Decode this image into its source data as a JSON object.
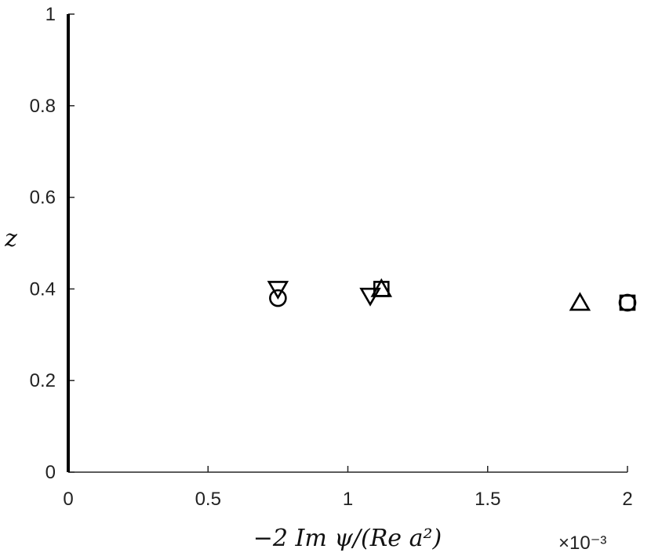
{
  "chart_data": {
    "type": "line",
    "title": "",
    "xlabel": "−2 Im ψ/(Re a²)",
    "ylabel": "z",
    "x_multiplier": "×10⁻³",
    "xlim": [
      0,
      2.0
    ],
    "ylim": [
      0,
      1
    ],
    "xticks": [
      0,
      0.5,
      1,
      1.5,
      2
    ],
    "yticks": [
      0,
      0.2,
      0.4,
      0.6,
      0.8,
      1
    ],
    "xtick_labels": [
      "0",
      "0.5",
      "1",
      "1.5",
      "2"
    ],
    "ytick_labels": [
      "0",
      "0.2",
      "0.4",
      "0.6",
      "0.8",
      "1"
    ],
    "grid": false,
    "legend": "none",
    "series": [
      {
        "style": "solid",
        "marker": "circle",
        "peak": {
          "x": 2.0,
          "z": 0.37
        }
      },
      {
        "style": "solid",
        "marker": "square",
        "peak": {
          "x": 2.0,
          "z": 0.37
        }
      },
      {
        "style": "solid",
        "marker": "triangle-up",
        "peak": {
          "x": 1.83,
          "z": 0.37
        }
      },
      {
        "style": "solid",
        "marker": "triangle-down",
        "peak": {
          "x": 1.08,
          "z": 0.385
        }
      },
      {
        "style": "dashed",
        "marker": "triangle-up",
        "peak": {
          "x": 1.12,
          "z": 0.4
        }
      },
      {
        "style": "dashed",
        "marker": "square",
        "peak": {
          "x": 1.12,
          "z": 0.4
        }
      },
      {
        "style": "dashed",
        "marker": "triangle-down",
        "peak": {
          "x": 0.75,
          "z": 0.4
        }
      },
      {
        "style": "dashed",
        "marker": "circle",
        "peak": {
          "x": 0.75,
          "z": 0.38
        }
      }
    ]
  },
  "colors": {
    "line": "#000000",
    "axis": "#262626",
    "background": "#ffffff"
  }
}
